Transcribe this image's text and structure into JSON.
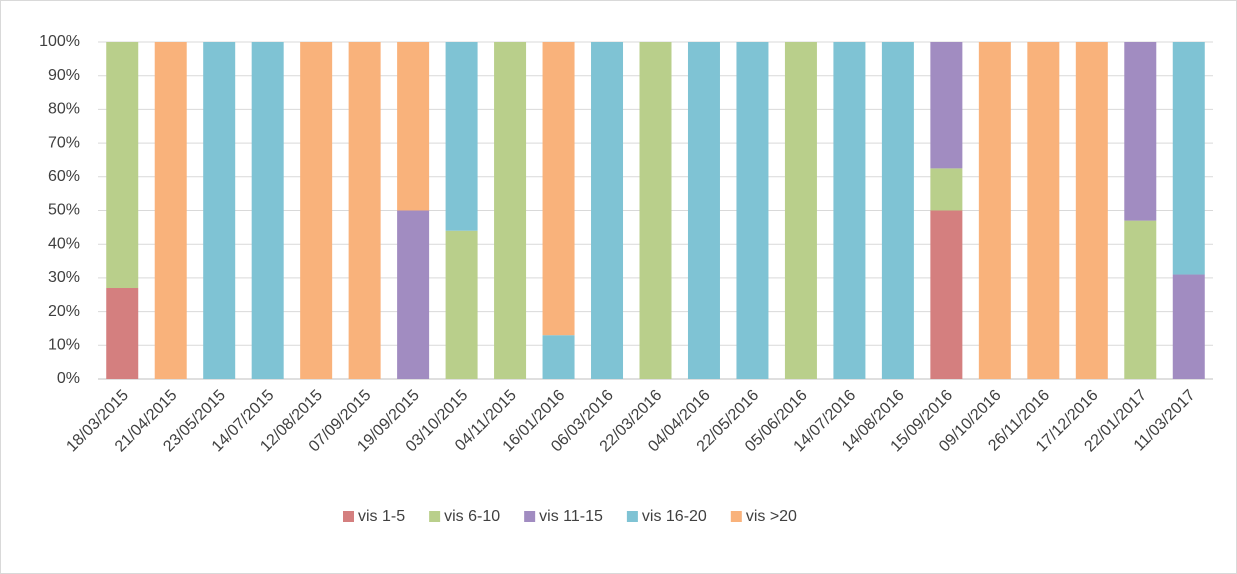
{
  "chart_data": {
    "type": "stacked_bar",
    "categories": [
      "18/03/2015",
      "21/04/2015",
      "23/05/2015",
      "14/07/2015",
      "12/08/2015",
      "07/09/2015",
      "19/09/2015",
      "03/10/2015",
      "04/11/2015",
      "16/01/2016",
      "06/03/2016",
      "22/03/2016",
      "04/04/2016",
      "22/05/2016",
      "05/06/2016",
      "14/07/2016",
      "14/08/2016",
      "15/09/2016",
      "09/10/2016",
      "26/11/2016",
      "17/12/2016",
      "22/01/2017",
      "11/03/2017"
    ],
    "series": [
      {
        "name": "vis 1-5",
        "color": "#d47f7f",
        "values": [
          27,
          0,
          0,
          0,
          0,
          0,
          0,
          0,
          0,
          0,
          0,
          0,
          0,
          0,
          0,
          0,
          0,
          50,
          0,
          0,
          0,
          0,
          0
        ]
      },
      {
        "name": "vis 6-10",
        "color": "#b9cf8b",
        "values": [
          73,
          0,
          0,
          0,
          0,
          0,
          0,
          44,
          100,
          0,
          0,
          100,
          0,
          0,
          100,
          0,
          0,
          12.5,
          0,
          0,
          0,
          47,
          0
        ]
      },
      {
        "name": "vis 11-15",
        "color": "#a18cc1",
        "values": [
          0,
          0,
          0,
          0,
          0,
          0,
          50,
          0,
          0,
          0,
          0,
          0,
          0,
          0,
          0,
          0,
          0,
          37.5,
          0,
          0,
          0,
          53,
          31
        ]
      },
      {
        "name": "vis 16-20",
        "color": "#7fc3d4",
        "values": [
          0,
          0,
          100,
          100,
          0,
          0,
          0,
          56,
          0,
          13,
          100,
          0,
          100,
          100,
          0,
          100,
          100,
          0,
          0,
          0,
          0,
          0,
          69
        ]
      },
      {
        "name": "vis >20",
        "color": "#f9b27b",
        "values": [
          0,
          100,
          0,
          0,
          100,
          100,
          50,
          0,
          0,
          87,
          0,
          0,
          0,
          0,
          0,
          0,
          0,
          0,
          100,
          100,
          100,
          0,
          0
        ]
      }
    ],
    "ylim": [
      0,
      100
    ],
    "yticks": [
      {
        "value": 0,
        "label": "0%"
      },
      {
        "value": 10,
        "label": "10%"
      },
      {
        "value": 20,
        "label": "20%"
      },
      {
        "value": 30,
        "label": "30%"
      },
      {
        "value": 40,
        "label": "40%"
      },
      {
        "value": 50,
        "label": "50%"
      },
      {
        "value": 60,
        "label": "60%"
      },
      {
        "value": 70,
        "label": "70%"
      },
      {
        "value": 80,
        "label": "80%"
      },
      {
        "value": 90,
        "label": "90%"
      },
      {
        "value": 100,
        "label": "100%"
      }
    ],
    "grid": true,
    "legend": "bottom"
  }
}
